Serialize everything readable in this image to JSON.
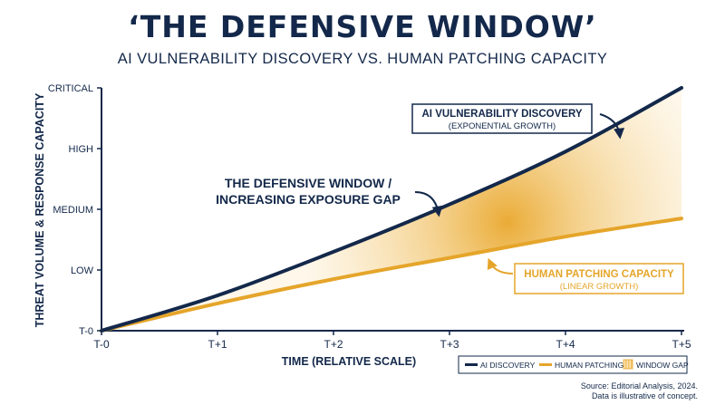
{
  "header": {
    "title": "‘THE DEFENSIVE WINDOW’",
    "subtitle": "AI VULNERABILITY DISCOVERY VS. HUMAN PATCHING CAPACITY"
  },
  "annotations": {
    "ai_line1": "AI VULNERABILITY DISCOVERY",
    "ai_line2": "(EXPONENTIAL GROWTH)",
    "gap_line1": "THE DEFENSIVE WINDOW /",
    "gap_line2": "INCREASING EXPOSURE GAP",
    "human_line1": "HUMAN PATCHING CAPACITY",
    "human_line2": "(LINEAR GROWTH)"
  },
  "legend": {
    "ai": "AI DISCOVERY",
    "human": "HUMAN PATCHING",
    "gap": "WINDOW GAP"
  },
  "footer": {
    "source": "Source: Editorial Analysis, 2024.",
    "note": "Data is illustrative of concept."
  },
  "colors": {
    "navy": "#13284a",
    "gold": "#e5a52a",
    "gap_fill": "#f2c56e"
  },
  "chart_data": {
    "type": "line",
    "xlabel": "TIME (RELATIVE SCALE)",
    "ylabel": "THREAT VOLUME & RESPONSE CAPACITY",
    "x": [
      "T-0",
      "T+1",
      "T+2",
      "T+3",
      "T+4",
      "T+5"
    ],
    "y_ticks": [
      "T-0",
      "LOW",
      "MEDIUM",
      "HIGH",
      "CRITICAL"
    ],
    "ylim": [
      0,
      4
    ],
    "series": [
      {
        "name": "AI DISCOVERY",
        "values": [
          0,
          0.58,
          1.3,
          2.08,
          2.95,
          4.0
        ]
      },
      {
        "name": "HUMAN PATCHING",
        "values": [
          0,
          0.45,
          0.85,
          1.2,
          1.55,
          1.85
        ]
      }
    ],
    "shaded_area": "WINDOW GAP",
    "grid": false,
    "legend_position": "bottom-right"
  }
}
